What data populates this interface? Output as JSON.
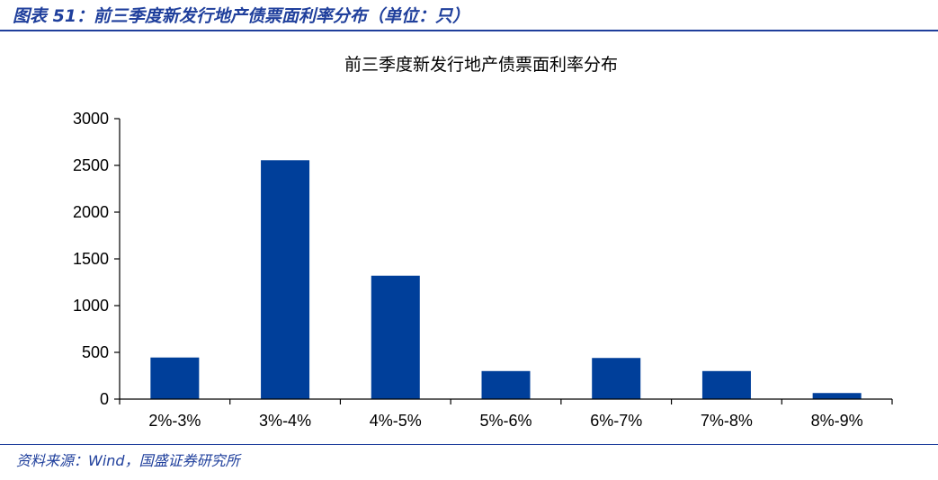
{
  "figure": {
    "caption": "图表 51：前三季度新发行地产债票面利率分布（单位：只）",
    "source": "资料来源：Wind，国盛证券研究所"
  },
  "colors": {
    "bar": "#003f9a",
    "caption": "#1f3f9c",
    "axis": "#000000"
  },
  "chart_data": {
    "type": "bar",
    "title": "前三季度新发行地产债票面利率分布",
    "xlabel": "",
    "ylabel": "",
    "categories": [
      "2%-3%",
      "3%-4%",
      "4%-5%",
      "5%-6%",
      "6%-7%",
      "7%-8%",
      "8%-9%"
    ],
    "values": [
      445,
      2555,
      1320,
      300,
      440,
      300,
      65
    ],
    "ylim": [
      0,
      3000
    ],
    "yticks": [
      0,
      500,
      1000,
      1500,
      2000,
      2500,
      3000
    ],
    "grid": false,
    "legend": "none"
  }
}
